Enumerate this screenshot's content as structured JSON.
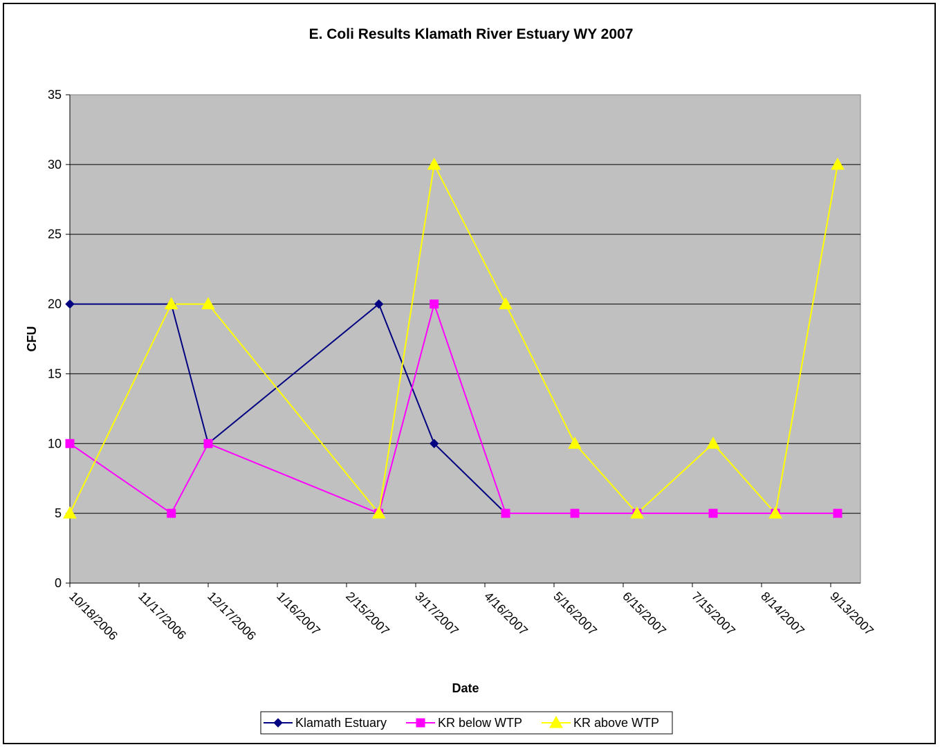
{
  "chart_data": {
    "type": "line",
    "title": "E. Coli Results Klamath River Estuary WY 2007",
    "xlabel": "Date",
    "ylabel": "CFU",
    "ylim": [
      0,
      35
    ],
    "yticks": [
      0,
      5,
      10,
      15,
      20,
      25,
      30,
      35
    ],
    "xlim": [
      "10/18/2006",
      "9/13/2007"
    ],
    "xtick_labels": [
      "10/18/2006",
      "11/17/2006",
      "12/17/2006",
      "1/16/2007",
      "2/15/2007",
      "3/17/2007",
      "4/16/2007",
      "5/16/2007",
      "6/15/2007",
      "7/15/2007",
      "8/14/2007",
      "9/13/2007"
    ],
    "grid": "horizontal major gridlines",
    "legend_position": "bottom",
    "plot_background": "#c0c0c0",
    "series": [
      {
        "name": "Klamath Estuary",
        "color": "#000080",
        "marker": "diamond",
        "points": [
          {
            "x": "10/18/2006",
            "y": 20
          },
          {
            "x": "12/1/2006",
            "y": 20
          },
          {
            "x": "12/17/2006",
            "y": 10
          },
          {
            "x": "2/29/2007",
            "y": 20
          },
          {
            "x": "3/25/2007",
            "y": 10
          },
          {
            "x": "4/25/2007",
            "y": 5
          }
        ]
      },
      {
        "name": "KR below WTP",
        "color": "#ff00ff",
        "marker": "square",
        "points": [
          {
            "x": "10/18/2006",
            "y": 10
          },
          {
            "x": "12/1/2006",
            "y": 5
          },
          {
            "x": "12/17/2006",
            "y": 10
          },
          {
            "x": "2/29/2007",
            "y": 5
          },
          {
            "x": "3/25/2007",
            "y": 20
          },
          {
            "x": "4/25/2007",
            "y": 5
          },
          {
            "x": "5/25/2007",
            "y": 5
          },
          {
            "x": "6/21/2007",
            "y": 5
          },
          {
            "x": "7/24/2007",
            "y": 5
          },
          {
            "x": "8/20/2007",
            "y": 5
          },
          {
            "x": "9/16/2007",
            "y": 5
          }
        ]
      },
      {
        "name": "KR above WTP",
        "color": "#ffff00",
        "marker": "triangle",
        "points": [
          {
            "x": "10/18/2006",
            "y": 5
          },
          {
            "x": "12/1/2006",
            "y": 20
          },
          {
            "x": "12/17/2006",
            "y": 20
          },
          {
            "x": "2/29/2007",
            "y": 5
          },
          {
            "x": "3/25/2007",
            "y": 30
          },
          {
            "x": "4/25/2007",
            "y": 20
          },
          {
            "x": "5/25/2007",
            "y": 10
          },
          {
            "x": "6/21/2007",
            "y": 5
          },
          {
            "x": "7/24/2007",
            "y": 10
          },
          {
            "x": "8/20/2007",
            "y": 5
          },
          {
            "x": "9/16/2007",
            "y": 30
          }
        ]
      }
    ]
  }
}
